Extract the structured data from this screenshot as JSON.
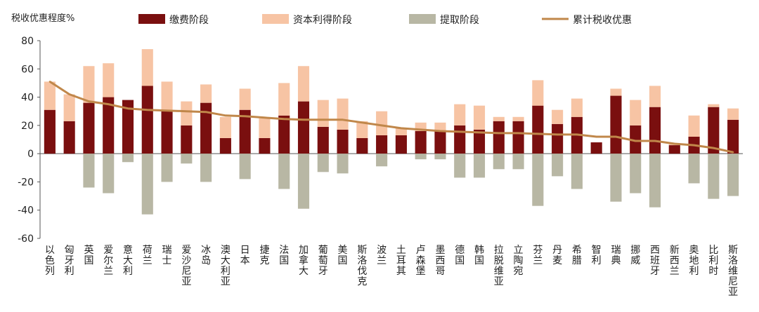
{
  "chart_data": {
    "type": "bar",
    "title": "",
    "ylabel": "税收优惠程度%",
    "xlabel": "",
    "ylim": [
      -60,
      80
    ],
    "yticks": [
      -60,
      -40,
      -20,
      0,
      20,
      40,
      60,
      80
    ],
    "legend_position": "top",
    "categories": [
      "以色列",
      "匈牙利",
      "英国",
      "爱尔兰",
      "意大利",
      "荷兰",
      "瑞士",
      "爱沙尼亚",
      "冰岛",
      "澳大利亚",
      "日本",
      "捷克",
      "法国",
      "加拿大",
      "葡萄牙",
      "美国",
      "斯洛伐克",
      "波兰",
      "土耳其",
      "卢森堡",
      "墨西哥",
      "德国",
      "韩国",
      "拉脱维亚",
      "立陶宛",
      "芬兰",
      "丹麦",
      "希腊",
      "智利",
      "瑞典",
      "挪威",
      "西班牙",
      "新西兰",
      "奥地利",
      "比利时",
      "斯洛维尼亚"
    ],
    "series": [
      {
        "name": "缴费阶段",
        "type": "bar",
        "color": "#7A0F0F",
        "values": [
          31,
          23,
          36,
          40,
          38,
          48,
          30,
          20,
          36,
          11,
          31,
          11,
          27,
          37,
          19,
          17,
          11,
          13,
          13,
          16,
          16,
          20,
          17,
          23,
          23,
          34,
          21,
          26,
          8,
          41,
          20,
          33,
          6,
          12,
          33,
          24
        ]
      },
      {
        "name": "资本利得阶段",
        "type": "bar",
        "color": "#F7C4A4",
        "values": [
          20,
          19,
          26,
          24,
          0,
          26,
          21,
          17,
          13,
          15,
          15,
          14,
          23,
          25,
          19,
          22,
          12,
          17,
          5,
          6,
          6,
          15,
          17,
          3,
          3,
          18,
          10,
          13,
          0,
          5,
          18,
          15,
          1,
          15,
          2,
          8
        ]
      },
      {
        "name": "提取阶段",
        "type": "bar",
        "color": "#B8B7A4",
        "values": [
          0,
          0,
          -24,
          -28,
          -6,
          -43,
          -20,
          -7,
          -20,
          0,
          -18,
          0,
          -25,
          -39,
          -13,
          -14,
          0,
          -9,
          0,
          -4,
          -4,
          -17,
          -17,
          -11,
          -11,
          -37,
          -16,
          -25,
          0,
          -34,
          -28,
          -38,
          0,
          -21,
          -32,
          -30
        ]
      },
      {
        "name": "累计税收优惠",
        "type": "line",
        "color": "#C0874A",
        "values": [
          51,
          42,
          37,
          35,
          32,
          31,
          30.5,
          30,
          29.5,
          27,
          26.5,
          25.5,
          24.5,
          24,
          24,
          24,
          22,
          20,
          18,
          17,
          16,
          15.5,
          15,
          14.5,
          14.5,
          14,
          13.5,
          13.5,
          12,
          12,
          9,
          9,
          7,
          6,
          4,
          1
        ]
      }
    ]
  }
}
